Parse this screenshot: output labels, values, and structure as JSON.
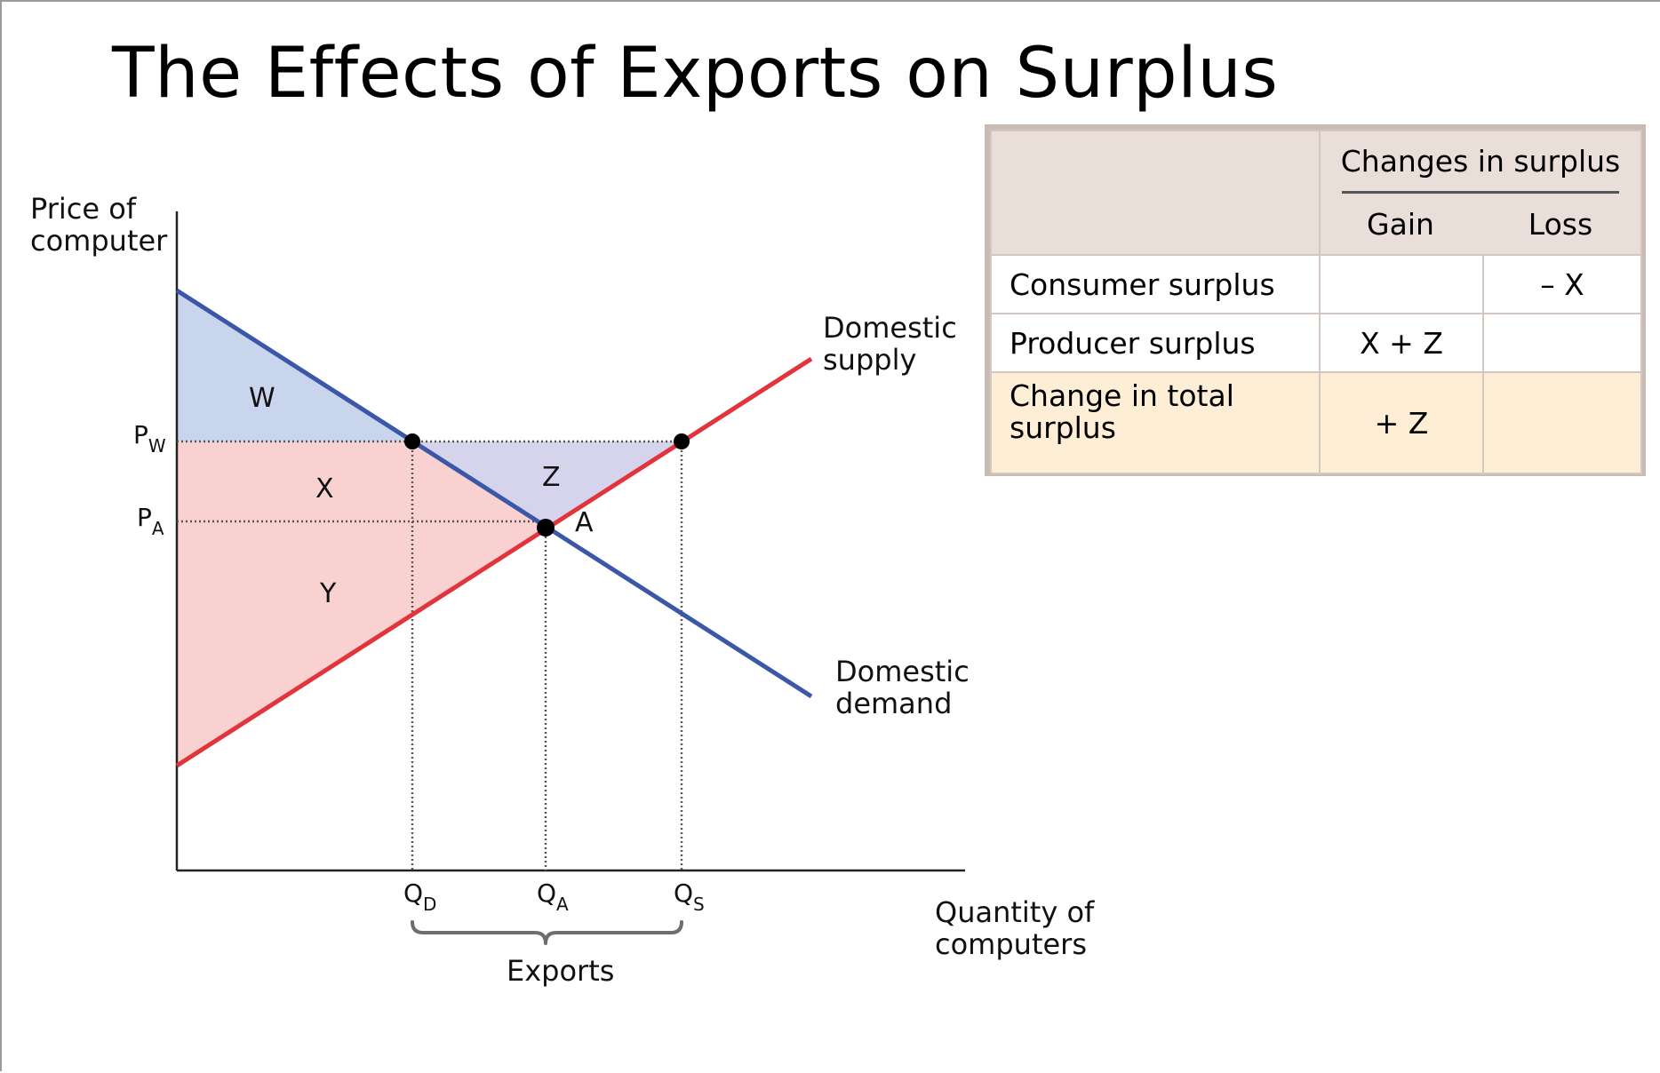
{
  "slide": {
    "title": "The Effects of Exports on Surplus"
  },
  "diagram": {
    "y_axis_label": [
      "Price of",
      "computer"
    ],
    "x_axis_label": [
      "Quantity of",
      "computers"
    ],
    "price_ticks": {
      "world": {
        "main": "P",
        "sub": "W"
      },
      "autarky": {
        "main": "P",
        "sub": "A"
      }
    },
    "quantity_ticks": {
      "demanded": {
        "main": "Q",
        "sub": "D"
      },
      "autarky": {
        "main": "Q",
        "sub": "A"
      },
      "supplied": {
        "main": "Q",
        "sub": "S"
      }
    },
    "curves": {
      "supply": [
        "Domestic",
        "supply"
      ],
      "demand": [
        "Domestic",
        "demand"
      ]
    },
    "regions": {
      "w": "W",
      "x": "X",
      "y": "Y",
      "z": "Z"
    },
    "equilibrium_label": "A",
    "exports_label": "Exports",
    "colors": {
      "demand": "#3a57a8",
      "supply": "#e2343c",
      "region_w": "#c9d5ec",
      "region_z": "#d6d4ec",
      "region_xy": "#f9d1d1"
    }
  },
  "table": {
    "group_header": "Changes in surplus",
    "col_gain": "Gain",
    "col_loss": "Loss",
    "rows": [
      {
        "label": "Consumer surplus",
        "gain": "",
        "loss": "– X"
      },
      {
        "label": "Producer surplus",
        "gain": "X + Z",
        "loss": ""
      },
      {
        "label_lines": [
          "Change in total",
          "surplus"
        ],
        "gain": "+ Z",
        "loss": ""
      }
    ],
    "colors": {
      "header": "#eaded8",
      "total_row": "#fdeed5",
      "border": "#c9bcb5"
    }
  }
}
